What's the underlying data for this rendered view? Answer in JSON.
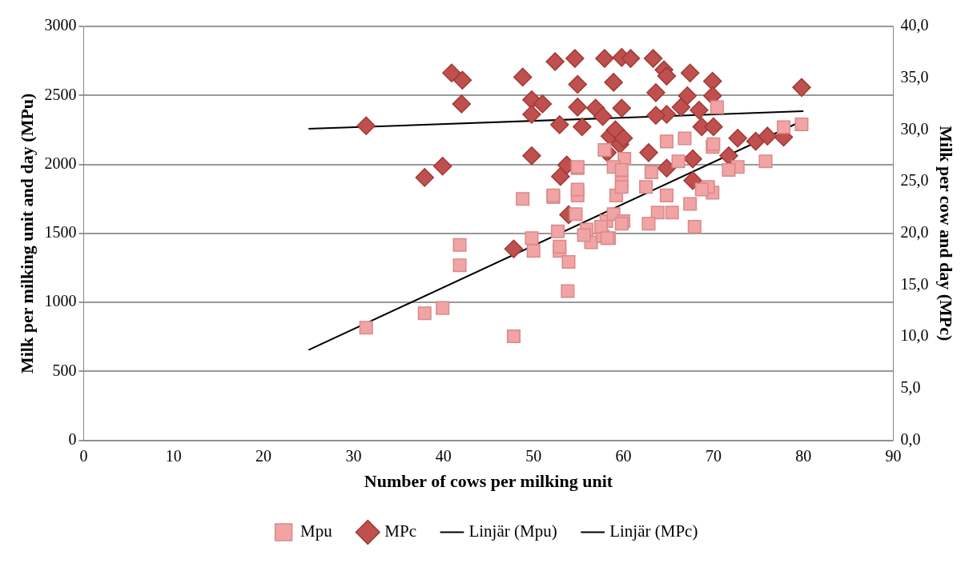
{
  "chart_data": {
    "type": "scatter",
    "xlabel": "Number of cows per milking unit",
    "ylabel": "Milk per milking unit and day (MPu)",
    "y2label": "Milk per cow and day (MPc)",
    "xlim": [
      0,
      90
    ],
    "xticks": [
      0,
      10,
      20,
      30,
      40,
      50,
      60,
      70,
      80,
      90
    ],
    "ylim": [
      0,
      3000
    ],
    "yticks": [
      0,
      500,
      1000,
      1500,
      2000,
      2500,
      3000
    ],
    "y2lim": [
      0,
      40
    ],
    "y2ticks": [
      {
        "value": 0,
        "label": "0,0"
      },
      {
        "value": 5,
        "label": "5,0"
      },
      {
        "value": 10,
        "label": "10,0"
      },
      {
        "value": 15,
        "label": "15,0"
      },
      {
        "value": 20,
        "label": "20,0"
      },
      {
        "value": 25,
        "label": "25,0"
      },
      {
        "value": 30,
        "label": "30,0"
      },
      {
        "value": 35,
        "label": "35,0"
      },
      {
        "value": 40,
        "label": "40,0"
      }
    ],
    "grid": "y",
    "legend": "bottom",
    "series": [
      {
        "name": "Mpu",
        "marker": "square",
        "color": "#f2a3a3",
        "x": [
          31.4,
          37.9,
          39.9,
          41.8,
          41.8,
          47.8,
          48.8,
          49.8,
          50,
          52.2,
          52.7,
          52.9,
          53.9,
          53.8,
          54.9,
          54.9,
          54.7,
          55.9,
          56.4,
          57.7,
          58.1,
          58.4,
          58.9,
          59.2,
          59.8,
          60,
          60.1,
          79.8,
          77.8,
          75.8,
          72.7,
          71.7,
          69.9,
          70.4,
          69.9,
          67.9,
          65.4,
          63.8,
          62.8,
          64.8,
          62.5,
          64.8,
          66.8,
          70,
          69.4,
          67.4,
          58.9,
          59.8,
          59.8,
          57.5,
          58.2,
          55.6,
          52.9,
          54.9,
          52.2,
          54.9,
          57.9,
          59.8,
          63.1,
          66.1,
          68.7
        ],
        "values": [
          816,
          921,
          959,
          1416,
          1268,
          754,
          1750,
          1466,
          1373,
          1763,
          1515,
          1373,
          1293,
          1082,
          1973,
          1775,
          1639,
          1528,
          1435,
          1478,
          1589,
          1466,
          1639,
          1775,
          1868,
          1589,
          2041,
          2290,
          2270,
          2022,
          1981,
          1960,
          2127,
          2414,
          1795,
          1548,
          1651,
          1651,
          1570,
          1775,
          1837,
          2166,
          2189,
          2146,
          1837,
          1713,
          1981,
          1837,
          1570,
          1548,
          1466,
          1487,
          1404,
          1981,
          1775,
          1818,
          2105,
          1960,
          1942,
          2022,
          1818
        ]
      },
      {
        "name": "MPc",
        "marker": "diamond",
        "axis": "y2",
        "color": "#c0504d",
        "x": [
          31.4,
          37.9,
          39.9,
          40.9,
          42.1,
          42,
          47.8,
          48.8,
          49.8,
          49.8,
          51,
          49.8,
          52.4,
          52.9,
          53,
          53.7,
          53.9,
          54.6,
          54.9,
          54.9,
          55.4,
          56.9,
          57.7,
          57.9,
          58.9,
          59.8,
          59.8,
          59.6,
          58.2,
          58.5,
          59.1,
          60,
          60.8,
          63.3,
          64.5,
          64.8,
          67.4,
          69.9,
          79.8,
          63.6,
          67.1,
          69.9,
          64.8,
          66.4,
          68.4,
          63.6,
          68.7,
          70,
          72.7,
          74.7,
          77.8,
          76,
          71.7,
          62.8,
          64.8,
          67.7,
          67.7
        ],
        "values": [
          30.4,
          25.4,
          26.5,
          35.5,
          34.8,
          32.5,
          18.5,
          35.1,
          32.9,
          31.5,
          32.5,
          27.5,
          36.6,
          30.5,
          25.5,
          26.6,
          21.8,
          36.9,
          34.4,
          32.2,
          30.3,
          32.1,
          31.3,
          36.9,
          34.6,
          37.0,
          32.1,
          28.6,
          27.8,
          29.4,
          30.0,
          29.2,
          36.9,
          36.9,
          35.8,
          35.2,
          35.5,
          34.7,
          34.1,
          33.6,
          33.3,
          33.3,
          31.5,
          32.2,
          31.9,
          31.4,
          30.3,
          30.3,
          29.2,
          28.9,
          29.3,
          29.4,
          27.5,
          27.8,
          26.3,
          27.2,
          25.1
        ]
      },
      {
        "name": "Linjär (Mpu)",
        "type": "line",
        "marker": "none",
        "color": "#000000",
        "x": [
          25,
          80
        ],
        "values": [
          655,
          2319
        ]
      },
      {
        "name": "Linjär (MPc)",
        "type": "line",
        "marker": "none",
        "axis": "y2",
        "color": "#000000",
        "x": [
          25,
          80
        ],
        "values": [
          30.1,
          31.8
        ]
      }
    ]
  }
}
